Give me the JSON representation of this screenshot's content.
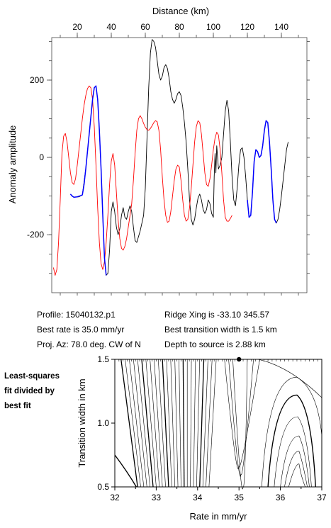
{
  "info": {
    "profile": "Profile: 15040132.p1",
    "ridge": "Ridge Xing is -33.10 345.57",
    "rate": "Best rate is 35.0 mm/yr",
    "width": "Best transition width is 1.5 km",
    "proj": "Proj. Az: 78.0 deg. CW of N",
    "depth": "Depth to source is   2.88 km"
  },
  "side_label": [
    "Least-squares",
    "fit divided by",
    "best fit"
  ],
  "colors": {
    "observed": "#000000",
    "model": "#ff0000",
    "fit": "#0000ff"
  },
  "chart_data": [
    {
      "type": "line",
      "title": "",
      "xlabel": "Distance (km)",
      "ylabel": "Anomaly amplitude",
      "xaxis_position": "top",
      "xlim": [
        5,
        155
      ],
      "ylim": [
        -350,
        310
      ],
      "xticks": [
        20,
        40,
        60,
        80,
        100,
        120,
        140
      ],
      "yticks": [
        -200,
        0,
        200
      ],
      "series": [
        {
          "color": "#000000",
          "points": [
            [
              16,
              -95
            ],
            [
              18,
              -103
            ],
            [
              21,
              -102
            ],
            [
              23,
              -97
            ],
            [
              25,
              -30
            ],
            [
              27,
              60
            ],
            [
              29,
              150
            ],
            [
              30,
              180
            ],
            [
              31,
              185
            ],
            [
              32,
              150
            ],
            [
              33,
              70
            ],
            [
              34,
              -30
            ],
            [
              35,
              -150
            ],
            [
              36,
              -260
            ],
            [
              37,
              -305
            ],
            [
              38,
              -300
            ],
            [
              39,
              -240
            ],
            [
              40,
              -140
            ],
            [
              41,
              -115
            ],
            [
              42,
              -140
            ],
            [
              43,
              -180
            ],
            [
              44,
              -200
            ],
            [
              45,
              -185
            ],
            [
              46,
              -150
            ],
            [
              47,
              -130
            ],
            [
              48,
              -155
            ],
            [
              49,
              -160
            ],
            [
              50,
              -140
            ],
            [
              51,
              -125
            ],
            [
              52,
              -140
            ],
            [
              53,
              -180
            ],
            [
              54,
              -215
            ],
            [
              55,
              -220
            ],
            [
              56,
              -205
            ],
            [
              57,
              -190
            ],
            [
              58,
              -170
            ],
            [
              59,
              -150
            ],
            [
              60,
              -80
            ],
            [
              61,
              50
            ],
            [
              62,
              180
            ],
            [
              63,
              270
            ],
            [
              64,
              305
            ],
            [
              65,
              300
            ],
            [
              66,
              285
            ],
            [
              67,
              250
            ],
            [
              68,
              215
            ],
            [
              69,
              200
            ],
            [
              70,
              210
            ],
            [
              71,
              232
            ],
            [
              72,
              240
            ],
            [
              73,
              230
            ],
            [
              74,
              205
            ],
            [
              75,
              170
            ],
            [
              76,
              150
            ],
            [
              77,
              140
            ],
            [
              78,
              150
            ],
            [
              79,
              165
            ],
            [
              80,
              170
            ],
            [
              81,
              160
            ],
            [
              82,
              130
            ],
            [
              83,
              90
            ],
            [
              84,
              40
            ],
            [
              85,
              -30
            ],
            [
              86,
              -110
            ],
            [
              87,
              -160
            ],
            [
              88,
              -175
            ],
            [
              89,
              -160
            ],
            [
              90,
              -130
            ],
            [
              91,
              -105
            ],
            [
              92,
              -95
            ],
            [
              93,
              -110
            ],
            [
              94,
              -135
            ],
            [
              95,
              -145
            ],
            [
              96,
              -135
            ],
            [
              97,
              -110
            ],
            [
              98,
              -120
            ],
            [
              99,
              -145
            ],
            [
              100,
              -155
            ],
            [
              100.5,
              -50
            ],
            [
              101,
              10
            ],
            [
              101.5,
              -40
            ],
            [
              102,
              30
            ],
            [
              103,
              -30
            ],
            [
              104,
              -20
            ],
            [
              105,
              0
            ],
            [
              106,
              60
            ],
            [
              107,
              120
            ],
            [
              108,
              148
            ],
            [
              109,
              120
            ],
            [
              110,
              40
            ],
            [
              111,
              -50
            ],
            [
              112,
              -110
            ],
            [
              113,
              -125
            ],
            [
              114,
              -80
            ],
            [
              115,
              -20
            ],
            [
              116,
              20
            ],
            [
              117,
              25
            ],
            [
              118,
              0
            ],
            [
              119,
              -50
            ],
            [
              120,
              -110
            ],
            [
              121,
              -155
            ],
            [
              122,
              -150
            ],
            [
              123,
              -90
            ],
            [
              124,
              -10
            ],
            [
              125,
              20
            ],
            [
              126,
              15
            ],
            [
              127,
              0
            ],
            [
              128,
              5
            ],
            [
              129,
              30
            ],
            [
              130,
              70
            ],
            [
              131,
              95
            ],
            [
              132,
              90
            ],
            [
              133,
              40
            ],
            [
              134,
              -30
            ],
            [
              135,
              -110
            ],
            [
              136,
              -160
            ],
            [
              137,
              -170
            ],
            [
              138,
              -160
            ],
            [
              139,
              -135
            ],
            [
              140,
              -100
            ],
            [
              141,
              -60
            ],
            [
              142,
              -20
            ],
            [
              143,
              20
            ],
            [
              144,
              40
            ]
          ]
        },
        {
          "color": "#ff0000",
          "points": [
            [
              6,
              -285
            ],
            [
              7,
              -305
            ],
            [
              8,
              -290
            ],
            [
              9,
              -220
            ],
            [
              10,
              -110
            ],
            [
              11,
              10
            ],
            [
              12,
              55
            ],
            [
              13,
              62
            ],
            [
              14,
              40
            ],
            [
              15,
              0
            ],
            [
              16,
              -40
            ],
            [
              17,
              -65
            ],
            [
              18,
              -70
            ],
            [
              19,
              -55
            ],
            [
              20,
              -20
            ],
            [
              21,
              20
            ],
            [
              22,
              60
            ],
            [
              23,
              100
            ],
            [
              24,
              135
            ],
            [
              25,
              160
            ],
            [
              26,
              178
            ],
            [
              27,
              185
            ],
            [
              28,
              180
            ],
            [
              29,
              150
            ],
            [
              30,
              80
            ],
            [
              31,
              -20
            ],
            [
              32,
              -130
            ],
            [
              33,
              -220
            ],
            [
              34,
              -275
            ],
            [
              35,
              -290
            ],
            [
              36,
              -270
            ],
            [
              37,
              -220
            ],
            [
              38,
              -150
            ],
            [
              39,
              -70
            ],
            [
              40,
              -10
            ],
            [
              41,
              10
            ],
            [
              42,
              -20
            ],
            [
              43,
              -90
            ],
            [
              44,
              -160
            ],
            [
              45,
              -210
            ],
            [
              46,
              -235
            ],
            [
              47,
              -240
            ],
            [
              48,
              -230
            ],
            [
              49,
              -210
            ],
            [
              50,
              -180
            ],
            [
              51,
              -150
            ],
            [
              52,
              -120
            ],
            [
              53,
              -60
            ],
            [
              54,
              10
            ],
            [
              55,
              70
            ],
            [
              56,
              100
            ],
            [
              57,
              108
            ],
            [
              58,
              100
            ],
            [
              59,
              88
            ],
            [
              60,
              78
            ],
            [
              61,
              72
            ],
            [
              62,
              70
            ],
            [
              63,
              75
            ],
            [
              64,
              82
            ],
            [
              65,
              90
            ],
            [
              66,
              95
            ],
            [
              67,
              92
            ],
            [
              68,
              70
            ],
            [
              69,
              20
            ],
            [
              70,
              -50
            ],
            [
              71,
              -110
            ],
            [
              72,
              -150
            ],
            [
              73,
              -168
            ],
            [
              74,
              -165
            ],
            [
              75,
              -140
            ],
            [
              76,
              -100
            ],
            [
              77,
              -60
            ],
            [
              78,
              -30
            ],
            [
              79,
              -20
            ],
            [
              80,
              -25
            ],
            [
              81,
              -60
            ],
            [
              82,
              -110
            ],
            [
              83,
              -150
            ],
            [
              84,
              -165
            ],
            [
              85,
              -160
            ],
            [
              86,
              -130
            ],
            [
              87,
              -80
            ],
            [
              88,
              -20
            ],
            [
              89,
              40
            ],
            [
              90,
              80
            ],
            [
              91,
              95
            ],
            [
              92,
              90
            ],
            [
              93,
              60
            ],
            [
              94,
              10
            ],
            [
              95,
              -40
            ],
            [
              96,
              -70
            ],
            [
              97,
              -75
            ],
            [
              98,
              -55
            ],
            [
              99,
              -20
            ],
            [
              100,
              20
            ],
            [
              101,
              50
            ],
            [
              102,
              65
            ],
            [
              103,
              58
            ],
            [
              104,
              20
            ],
            [
              105,
              -40
            ],
            [
              106,
              -110
            ],
            [
              107,
              -155
            ],
            [
              108,
              -165
            ],
            [
              109,
              -165
            ],
            [
              110,
              -158
            ],
            [
              111,
              -150
            ]
          ]
        },
        {
          "color": "#0000ff",
          "points": [
            [
              16,
              -95
            ],
            [
              17,
              -100
            ],
            [
              18,
              -103
            ],
            [
              20,
              -102
            ],
            [
              22,
              -99
            ],
            [
              23,
              -97
            ],
            [
              24,
              -70
            ],
            [
              25,
              -30
            ],
            [
              27,
              60
            ],
            [
              29,
              150
            ],
            [
              30,
              180
            ],
            [
              31,
              185
            ],
            [
              32,
              150
            ],
            [
              33,
              70
            ],
            [
              34,
              -30
            ],
            [
              35,
              -150
            ],
            [
              36,
              -260
            ],
            [
              37,
              -305
            ]
          ]
        },
        {
          "color": "#0000ff",
          "points": [
            [
              120,
              -110
            ],
            [
              121,
              -155
            ],
            [
              122,
              -150
            ],
            [
              123,
              -90
            ],
            [
              124,
              -10
            ],
            [
              125,
              20
            ],
            [
              126,
              15
            ],
            [
              127,
              0
            ],
            [
              128,
              5
            ],
            [
              129,
              30
            ],
            [
              130,
              70
            ],
            [
              131,
              95
            ],
            [
              132,
              90
            ],
            [
              133,
              40
            ],
            [
              134,
              -30
            ],
            [
              135,
              -110
            ],
            [
              136,
              -160
            ],
            [
              137,
              -170
            ]
          ]
        }
      ]
    },
    {
      "type": "contour",
      "title": "",
      "xlabel": "Rate in mm/yr",
      "ylabel": "Transition width in km",
      "xlim": [
        32,
        37
      ],
      "ylim": [
        0.5,
        1.5
      ],
      "xticks": [
        "32",
        "33",
        "34",
        "35",
        "36",
        "37"
      ],
      "yticks": [
        "0.5",
        "1.0",
        "1.5"
      ],
      "best_fit": {
        "rate": 35.0,
        "width": 1.5
      },
      "note": "contour levels not labeled"
    }
  ]
}
